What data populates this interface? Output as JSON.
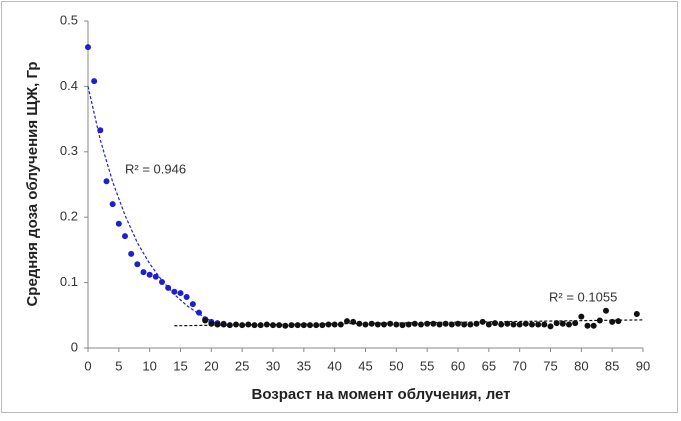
{
  "chart_data": {
    "type": "scatter",
    "x_label": "Возраст  на момент облучения, лет",
    "y_label": "Средняя доза облучения ЩЖ, Гр",
    "xlim": [
      0,
      90
    ],
    "xticks": [
      0,
      5,
      10,
      15,
      20,
      25,
      30,
      35,
      40,
      45,
      50,
      55,
      60,
      65,
      70,
      75,
      80,
      85,
      90
    ],
    "ylim": [
      0,
      0.5
    ],
    "yticks": [
      0,
      0.1,
      0.2,
      0.3,
      0.4,
      0.5
    ],
    "grid": false,
    "series": [
      {
        "color": "#1f1fd0",
        "x": [
          0,
          1,
          2,
          3,
          4,
          5,
          6,
          7,
          8,
          9,
          10,
          11,
          12,
          13,
          14,
          15,
          16,
          17,
          18,
          19,
          20,
          21,
          22
        ],
        "values": [
          0.46,
          0.408,
          0.333,
          0.255,
          0.22,
          0.19,
          0.171,
          0.144,
          0.128,
          0.116,
          0.112,
          0.109,
          0.101,
          0.092,
          0.086,
          0.084,
          0.078,
          0.067,
          0.054,
          0.044,
          0.04,
          0.038,
          0.037
        ]
      },
      {
        "color": "#111111",
        "x": [
          19,
          20,
          21,
          22,
          23,
          24,
          25,
          26,
          27,
          28,
          29,
          30,
          31,
          32,
          33,
          34,
          35,
          36,
          37,
          38,
          39,
          40,
          41,
          42,
          43,
          44,
          45,
          46,
          47,
          48,
          49,
          50,
          51,
          52,
          53,
          54,
          55,
          56,
          57,
          58,
          59,
          60,
          61,
          62,
          63,
          64,
          65,
          66,
          67,
          68,
          69,
          70,
          71,
          72,
          73,
          74,
          75,
          76,
          77,
          78,
          79,
          80,
          81,
          82,
          83,
          84,
          85,
          86,
          89
        ],
        "values": [
          0.042,
          0.037,
          0.036,
          0.036,
          0.035,
          0.036,
          0.035,
          0.036,
          0.035,
          0.035,
          0.036,
          0.035,
          0.035,
          0.034,
          0.035,
          0.035,
          0.035,
          0.035,
          0.035,
          0.035,
          0.036,
          0.036,
          0.036,
          0.041,
          0.04,
          0.037,
          0.036,
          0.037,
          0.036,
          0.036,
          0.037,
          0.036,
          0.035,
          0.036,
          0.037,
          0.036,
          0.037,
          0.037,
          0.036,
          0.037,
          0.036,
          0.037,
          0.036,
          0.036,
          0.037,
          0.04,
          0.036,
          0.038,
          0.036,
          0.037,
          0.036,
          0.036,
          0.037,
          0.036,
          0.036,
          0.036,
          0.033,
          0.038,
          0.037,
          0.036,
          0.038,
          0.048,
          0.034,
          0.034,
          0.042,
          0.057,
          0.04,
          0.041,
          0.052
        ]
      }
    ],
    "trendlines": [
      {
        "color": "#1f1fd0",
        "label": "R² = 0.946",
        "x": [
          0,
          2,
          4,
          6,
          8,
          10,
          12,
          14,
          16,
          18,
          20,
          22
        ],
        "values": [
          0.4,
          0.318,
          0.254,
          0.203,
          0.161,
          0.129,
          0.103,
          0.082,
          0.065,
          0.052,
          0.041,
          0.033
        ]
      },
      {
        "color": "#111111",
        "label": "R² = 0.1055",
        "x": [
          14,
          90
        ],
        "values": [
          0.034,
          0.043
        ]
      }
    ]
  }
}
